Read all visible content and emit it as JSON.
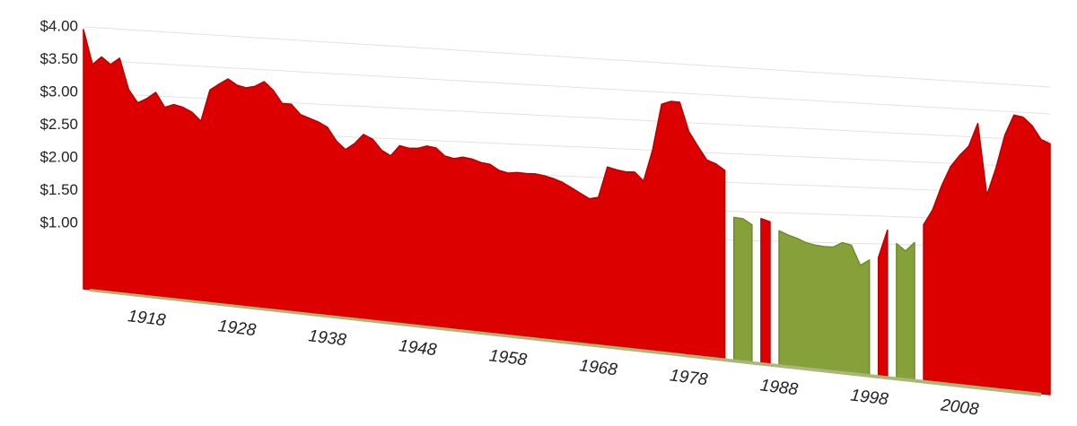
{
  "chart_data": {
    "type": "area",
    "x": [
      1913,
      1914,
      1915,
      1916,
      1917,
      1918,
      1919,
      1920,
      1921,
      1922,
      1923,
      1924,
      1925,
      1926,
      1927,
      1928,
      1929,
      1930,
      1931,
      1932,
      1933,
      1934,
      1935,
      1936,
      1937,
      1938,
      1939,
      1940,
      1941,
      1942,
      1943,
      1944,
      1945,
      1946,
      1947,
      1948,
      1949,
      1950,
      1951,
      1952,
      1953,
      1954,
      1955,
      1956,
      1957,
      1958,
      1959,
      1960,
      1961,
      1962,
      1963,
      1964,
      1965,
      1966,
      1967,
      1968,
      1969,
      1970,
      1971,
      1972,
      1973,
      1974,
      1975,
      1976,
      1977,
      1978,
      1979,
      1980,
      1981,
      1982,
      1983,
      1984,
      1985,
      1986,
      1987,
      1988,
      1989,
      1990,
      1991,
      1992,
      1993,
      1994,
      1995,
      1996,
      1997,
      1998,
      1999,
      2000,
      2001,
      2002,
      2003,
      2004,
      2005,
      2006,
      2007,
      2008,
      2009,
      2010,
      2011,
      2012,
      2013,
      2014,
      2015,
      2016,
      2017,
      2018,
      2019,
      2020
    ],
    "series": [
      {
        "color": "#dd0000",
        "values": [
          3.96,
          3.42,
          3.53,
          3.41,
          3.5,
          3.03,
          2.83,
          2.89,
          2.98,
          2.76,
          2.8,
          2.76,
          2.69,
          2.56,
          3.0,
          3.08,
          3.15,
          3.06,
          3.02,
          3.04,
          3.1,
          2.98,
          2.8,
          2.79,
          2.65,
          2.6,
          2.55,
          2.48,
          2.3,
          2.19,
          2.27,
          2.39,
          2.33,
          2.19,
          2.12,
          2.25,
          2.22,
          2.22,
          2.25,
          2.23,
          2.13,
          2.1,
          2.12,
          2.1,
          2.06,
          2.04,
          1.97,
          1.94,
          1.95,
          1.94,
          1.94,
          1.92,
          1.89,
          1.85,
          1.79,
          1.73,
          1.67,
          1.69,
          2.04,
          2.01,
          1.99,
          1.99,
          1.89,
          2.24,
          2.75,
          2.78,
          2.77,
          2.45,
          2.29,
          2.14,
          2.1,
          2.03,
          null,
          null,
          null,
          1.53,
          1.5,
          null,
          null,
          null,
          null,
          null,
          null,
          null,
          null,
          null,
          null,
          null,
          1.19,
          1.47,
          null,
          null,
          null,
          1.54,
          1.69,
          1.93,
          2.12,
          2.23,
          2.32,
          2.54,
          1.85,
          2.11,
          2.43,
          2.62,
          2.6,
          2.52,
          2.39,
          2.35
        ]
      },
      {
        "color": "#86a03a",
        "values": [
          null,
          null,
          null,
          null,
          null,
          null,
          null,
          null,
          null,
          null,
          null,
          null,
          null,
          null,
          null,
          null,
          null,
          null,
          null,
          null,
          null,
          null,
          null,
          null,
          null,
          null,
          null,
          null,
          null,
          null,
          null,
          null,
          null,
          null,
          null,
          null,
          null,
          null,
          null,
          null,
          null,
          null,
          null,
          null,
          null,
          null,
          null,
          null,
          null,
          null,
          null,
          null,
          null,
          null,
          null,
          null,
          null,
          null,
          null,
          null,
          null,
          null,
          null,
          null,
          null,
          null,
          null,
          null,
          null,
          null,
          null,
          null,
          1.53,
          1.52,
          1.46,
          null,
          null,
          1.41,
          1.37,
          1.34,
          1.3,
          1.28,
          1.27,
          1.27,
          1.32,
          1.3,
          1.1,
          1.16,
          null,
          null,
          1.34,
          1.27,
          1.36,
          null,
          null,
          null,
          null,
          null,
          null,
          null,
          null,
          null,
          null,
          null,
          null,
          null,
          null,
          null
        ]
      }
    ],
    "xlim": [
      1913,
      2020
    ],
    "xticks": [
      1918,
      1928,
      1938,
      1948,
      1958,
      1968,
      1978,
      1988,
      1998,
      2008
    ],
    "ylim": [
      0,
      4
    ],
    "yticks": [
      {
        "value": 1,
        "label": "$1.00"
      },
      {
        "value": 1.5,
        "label": "$1.50"
      },
      {
        "value": 2,
        "label": "$2.00"
      },
      {
        "value": 2.5,
        "label": "$2.50"
      },
      {
        "value": 3,
        "label": "$3.00"
      },
      {
        "value": 3.5,
        "label": "$3.50"
      },
      {
        "value": 4,
        "label": "$4.00"
      }
    ],
    "grid": true
  }
}
